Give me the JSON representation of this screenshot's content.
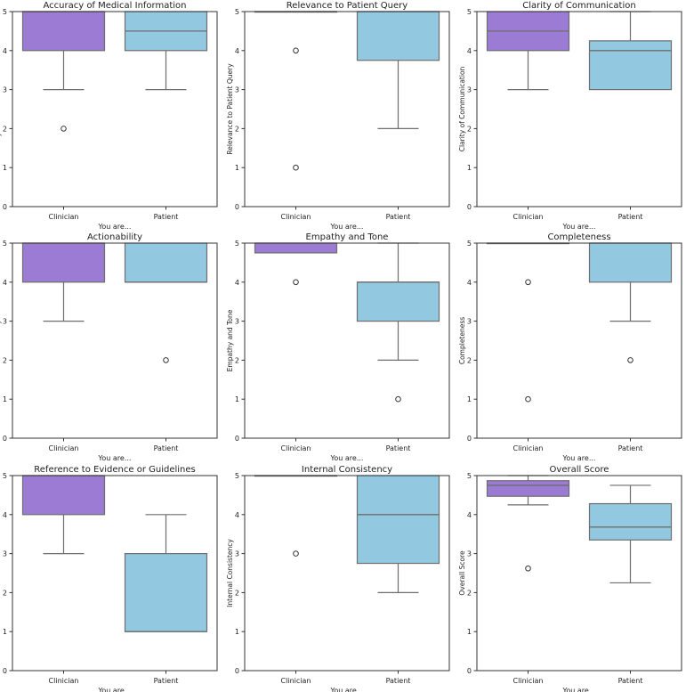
{
  "colors": {
    "clinician": "#9b7bd4",
    "patient": "#92c9e0"
  },
  "chart_data": [
    {
      "type": "box",
      "title": "Accuracy of Medical Information",
      "xlabel": "You are...",
      "ylabel": "Accuracy of Medical Information",
      "categories": [
        "Clinician",
        "Patient"
      ],
      "ylim": [
        0,
        5
      ],
      "yticks": [
        "0",
        "1",
        "2",
        "3",
        "4",
        "5"
      ],
      "boxes": [
        {
          "min": 3,
          "q1": 4,
          "median": 5,
          "q3": 5,
          "max": 5,
          "fliers": [
            2
          ]
        },
        {
          "min": 3,
          "q1": 4,
          "median": 4.5,
          "q3": 5,
          "max": 5,
          "fliers": []
        }
      ]
    },
    {
      "type": "box",
      "title": "Relevance to Patient Query",
      "xlabel": "You are...",
      "ylabel": "Relevance to Patient Query",
      "categories": [
        "Clinician",
        "Patient"
      ],
      "ylim": [
        0,
        5
      ],
      "yticks": [
        "0",
        "1",
        "2",
        "3",
        "4",
        "5"
      ],
      "boxes": [
        {
          "min": 5,
          "q1": 5,
          "median": 5,
          "q3": 5,
          "max": 5,
          "fliers": [
            4,
            1
          ]
        },
        {
          "min": 2,
          "q1": 3.75,
          "median": 5,
          "q3": 5,
          "max": 5,
          "fliers": []
        }
      ]
    },
    {
      "type": "box",
      "title": "Clarity of Communication",
      "xlabel": "You are...",
      "ylabel": "Clarity of Communication",
      "categories": [
        "Clinician",
        "Patient"
      ],
      "ylim": [
        0,
        5
      ],
      "yticks": [
        "0",
        "1",
        "2",
        "3",
        "4",
        "5"
      ],
      "boxes": [
        {
          "min": 3,
          "q1": 4,
          "median": 4.5,
          "q3": 5,
          "max": 5,
          "fliers": []
        },
        {
          "min": 3,
          "q1": 3,
          "median": 4,
          "q3": 4.25,
          "max": 5,
          "fliers": []
        }
      ]
    },
    {
      "type": "box",
      "title": "Actionability",
      "xlabel": "You are...",
      "ylabel": "Actionability",
      "categories": [
        "Clinician",
        "Patient"
      ],
      "ylim": [
        0,
        5
      ],
      "yticks": [
        "0",
        "1",
        "2",
        "3",
        "4",
        "5"
      ],
      "boxes": [
        {
          "min": 3,
          "q1": 4,
          "median": 5,
          "q3": 5,
          "max": 5,
          "fliers": []
        },
        {
          "min": 4,
          "q1": 4,
          "median": 4,
          "q3": 5,
          "max": 5,
          "fliers": [
            2
          ]
        }
      ]
    },
    {
      "type": "box",
      "title": "Empathy and Tone",
      "xlabel": "You are...",
      "ylabel": "Empathy and Tone",
      "categories": [
        "Clinician",
        "Patient"
      ],
      "ylim": [
        0,
        5
      ],
      "yticks": [
        "0",
        "1",
        "2",
        "3",
        "4",
        "5"
      ],
      "boxes": [
        {
          "min": 4.75,
          "q1": 4.75,
          "median": 5,
          "q3": 5,
          "max": 5,
          "fliers": [
            4
          ]
        },
        {
          "min": 2,
          "q1": 3,
          "median": 4,
          "q3": 4,
          "max": 5,
          "fliers": [
            1
          ]
        }
      ]
    },
    {
      "type": "box",
      "title": "Completeness",
      "xlabel": "You are...",
      "ylabel": "Completeness",
      "categories": [
        "Clinician",
        "Patient"
      ],
      "ylim": [
        0,
        5
      ],
      "yticks": [
        "0",
        "1",
        "2",
        "3",
        "4",
        "5"
      ],
      "boxes": [
        {
          "min": 5,
          "q1": 5,
          "median": 5,
          "q3": 5,
          "max": 5,
          "fliers": [
            4,
            1
          ]
        },
        {
          "min": 3,
          "q1": 4,
          "median": 5,
          "q3": 5,
          "max": 5,
          "fliers": [
            2
          ]
        }
      ]
    },
    {
      "type": "box",
      "title": "Reference to Evidence or Guidelines",
      "xlabel": "You are...",
      "ylabel": "Reference to Evidence or Guidelines",
      "categories": [
        "Clinician",
        "Patient"
      ],
      "ylim": [
        0,
        5
      ],
      "yticks": [
        "0",
        "1",
        "2",
        "3",
        "4",
        "5"
      ],
      "boxes": [
        {
          "min": 3,
          "q1": 4,
          "median": 5,
          "q3": 5,
          "max": 5,
          "fliers": []
        },
        {
          "min": 1,
          "q1": 1,
          "median": 1,
          "q3": 3,
          "max": 4,
          "fliers": []
        }
      ]
    },
    {
      "type": "box",
      "title": "Internal Consistency",
      "xlabel": "You are...",
      "ylabel": "Internal Consistency",
      "categories": [
        "Clinician",
        "Patient"
      ],
      "ylim": [
        0,
        5
      ],
      "yticks": [
        "0",
        "1",
        "2",
        "3",
        "4",
        "5"
      ],
      "boxes": [
        {
          "min": 5,
          "q1": 5,
          "median": 5,
          "q3": 5,
          "max": 5,
          "fliers": [
            3
          ]
        },
        {
          "min": 2,
          "q1": 2.75,
          "median": 4,
          "q3": 5,
          "max": 5,
          "fliers": []
        }
      ]
    },
    {
      "type": "box",
      "title": "Overall Score",
      "xlabel": "You are...",
      "ylabel": "Overall Score",
      "categories": [
        "Clinician",
        "Patient"
      ],
      "ylim": [
        0,
        5
      ],
      "yticks": [
        "0",
        "1",
        "2",
        "3",
        "4",
        "5"
      ],
      "boxes": [
        {
          "min": 4.25,
          "q1": 4.47,
          "median": 4.75,
          "q3": 4.87,
          "max": 5,
          "fliers": [
            2.62
          ]
        },
        {
          "min": 2.25,
          "q1": 3.35,
          "median": 3.68,
          "q3": 4.28,
          "max": 4.75,
          "fliers": []
        }
      ]
    }
  ]
}
